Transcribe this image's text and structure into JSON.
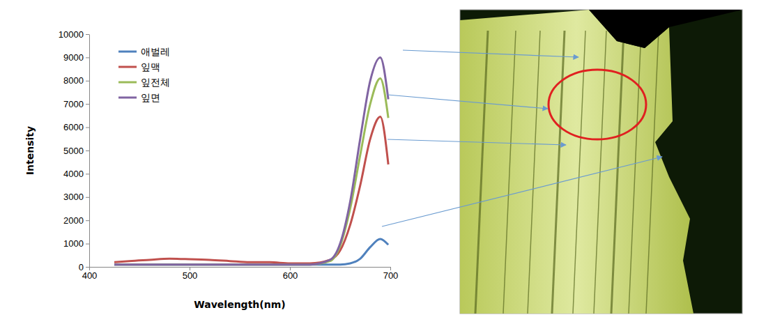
{
  "chart_data": {
    "type": "line",
    "x_label": "Wavelength(nm)",
    "y_label": "Intensity",
    "x": [
      425,
      440,
      460,
      480,
      500,
      520,
      540,
      560,
      580,
      600,
      620,
      640,
      650,
      660,
      670,
      680,
      690,
      698
    ],
    "xlim": [
      400,
      700
    ],
    "xticks": [
      400,
      500,
      600,
      700
    ],
    "ylim": [
      0,
      10000
    ],
    "yticks": [
      0,
      1000,
      2000,
      3000,
      4000,
      5000,
      6000,
      7000,
      8000,
      9000,
      10000
    ],
    "grid": false,
    "legend": "upper left",
    "series": [
      {
        "name": "애벌레",
        "color": "#4f81bd",
        "values": [
          100,
          100,
          100,
          100,
          100,
          100,
          100,
          100,
          100,
          100,
          100,
          100,
          100,
          150,
          350,
          850,
          1200,
          950
        ]
      },
      {
        "name": "잎맥",
        "color": "#c0504d",
        "values": [
          200,
          250,
          300,
          350,
          330,
          300,
          250,
          200,
          200,
          150,
          150,
          300,
          700,
          1800,
          3500,
          5500,
          6450,
          4400
        ]
      },
      {
        "name": "잎전체",
        "color": "#9bbb59",
        "values": [
          100,
          100,
          100,
          100,
          100,
          100,
          100,
          100,
          100,
          100,
          100,
          250,
          900,
          2500,
          4800,
          7000,
          8100,
          6400
        ]
      },
      {
        "name": "잎면",
        "color": "#8064a2",
        "values": [
          100,
          100,
          100,
          100,
          100,
          100,
          100,
          100,
          100,
          100,
          100,
          300,
          1000,
          2800,
          5500,
          8000,
          9000,
          7200
        ]
      }
    ]
  }
}
